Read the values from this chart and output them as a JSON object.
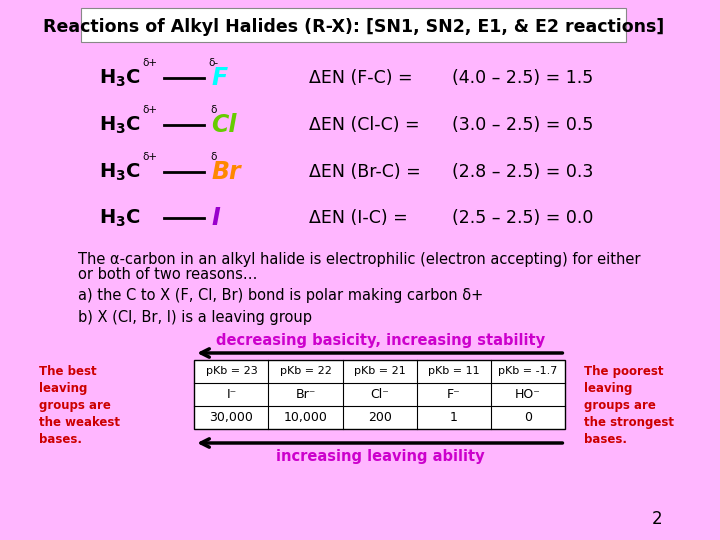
{
  "bg_color": "#ffb6ff",
  "title_box_color": "#ffffff",
  "title_text": "Reactions of Alkyl Halides (R-X): [SN1, SN2, E1, & E2 reactions]",
  "title_fontsize": 12.5,
  "halide_rows": [
    {
      "halide": "F",
      "halide_color": "#00ffff",
      "en_text": "ΔEN (F-C) =",
      "val_text": "(4.0 – 2.5) = 1.5",
      "delta_c": "δ+",
      "delta_hal": "δ-"
    },
    {
      "halide": "Cl",
      "halide_color": "#66cc00",
      "en_text": "ΔEN (Cl-C) =",
      "val_text": "(3.0 – 2.5) = 0.5",
      "delta_c": "δ+",
      "delta_hal": "δ"
    },
    {
      "halide": "Br",
      "halide_color": "#ff8800",
      "en_text": "ΔEN (Br-C) =",
      "val_text": "(2.8 – 2.5) = 0.3",
      "delta_c": "δ+",
      "delta_hal": "δ"
    },
    {
      "halide": "I",
      "halide_color": "#9900cc",
      "en_text": "ΔEN (I-C) =",
      "val_text": "(2.5 – 2.5) = 0.0",
      "delta_c": "",
      "delta_hal": ""
    }
  ],
  "body_text_color": "#000000",
  "alpha_text_1": "The α-carbon in an alkyl halide is electrophilic (electron accepting) for either",
  "alpha_text_2": "or both of two reasons…",
  "reason_a": "a) the C to X (F, Cl, Br) bond is polar making carbon δ+",
  "reason_b": "b) X (Cl, Br, I) is a leaving group",
  "arrow_color": "#000000",
  "decreasing_text": "decreasing basicity, increasing stability",
  "increasing_text": "increasing leaving ability",
  "arrow_label_color": "#cc00cc",
  "left_note": "The best\nleaving\ngroups are\nthe weakest\nbases.",
  "right_note": "The poorest\nleaving\ngroups are\nthe strongest\nbases.",
  "note_color": "#cc0000",
  "table_headers": [
    "pKb = 23",
    "pKb = 22",
    "pKb = 21",
    "pKb = 11",
    "pKb = -1.7"
  ],
  "table_row2": [
    "I⁻",
    "Br⁻",
    "Cl⁻",
    "F⁻",
    "HO⁻"
  ],
  "table_row3": [
    "30,000",
    "10,000",
    "200",
    "1",
    "0"
  ],
  "page_num": "2"
}
